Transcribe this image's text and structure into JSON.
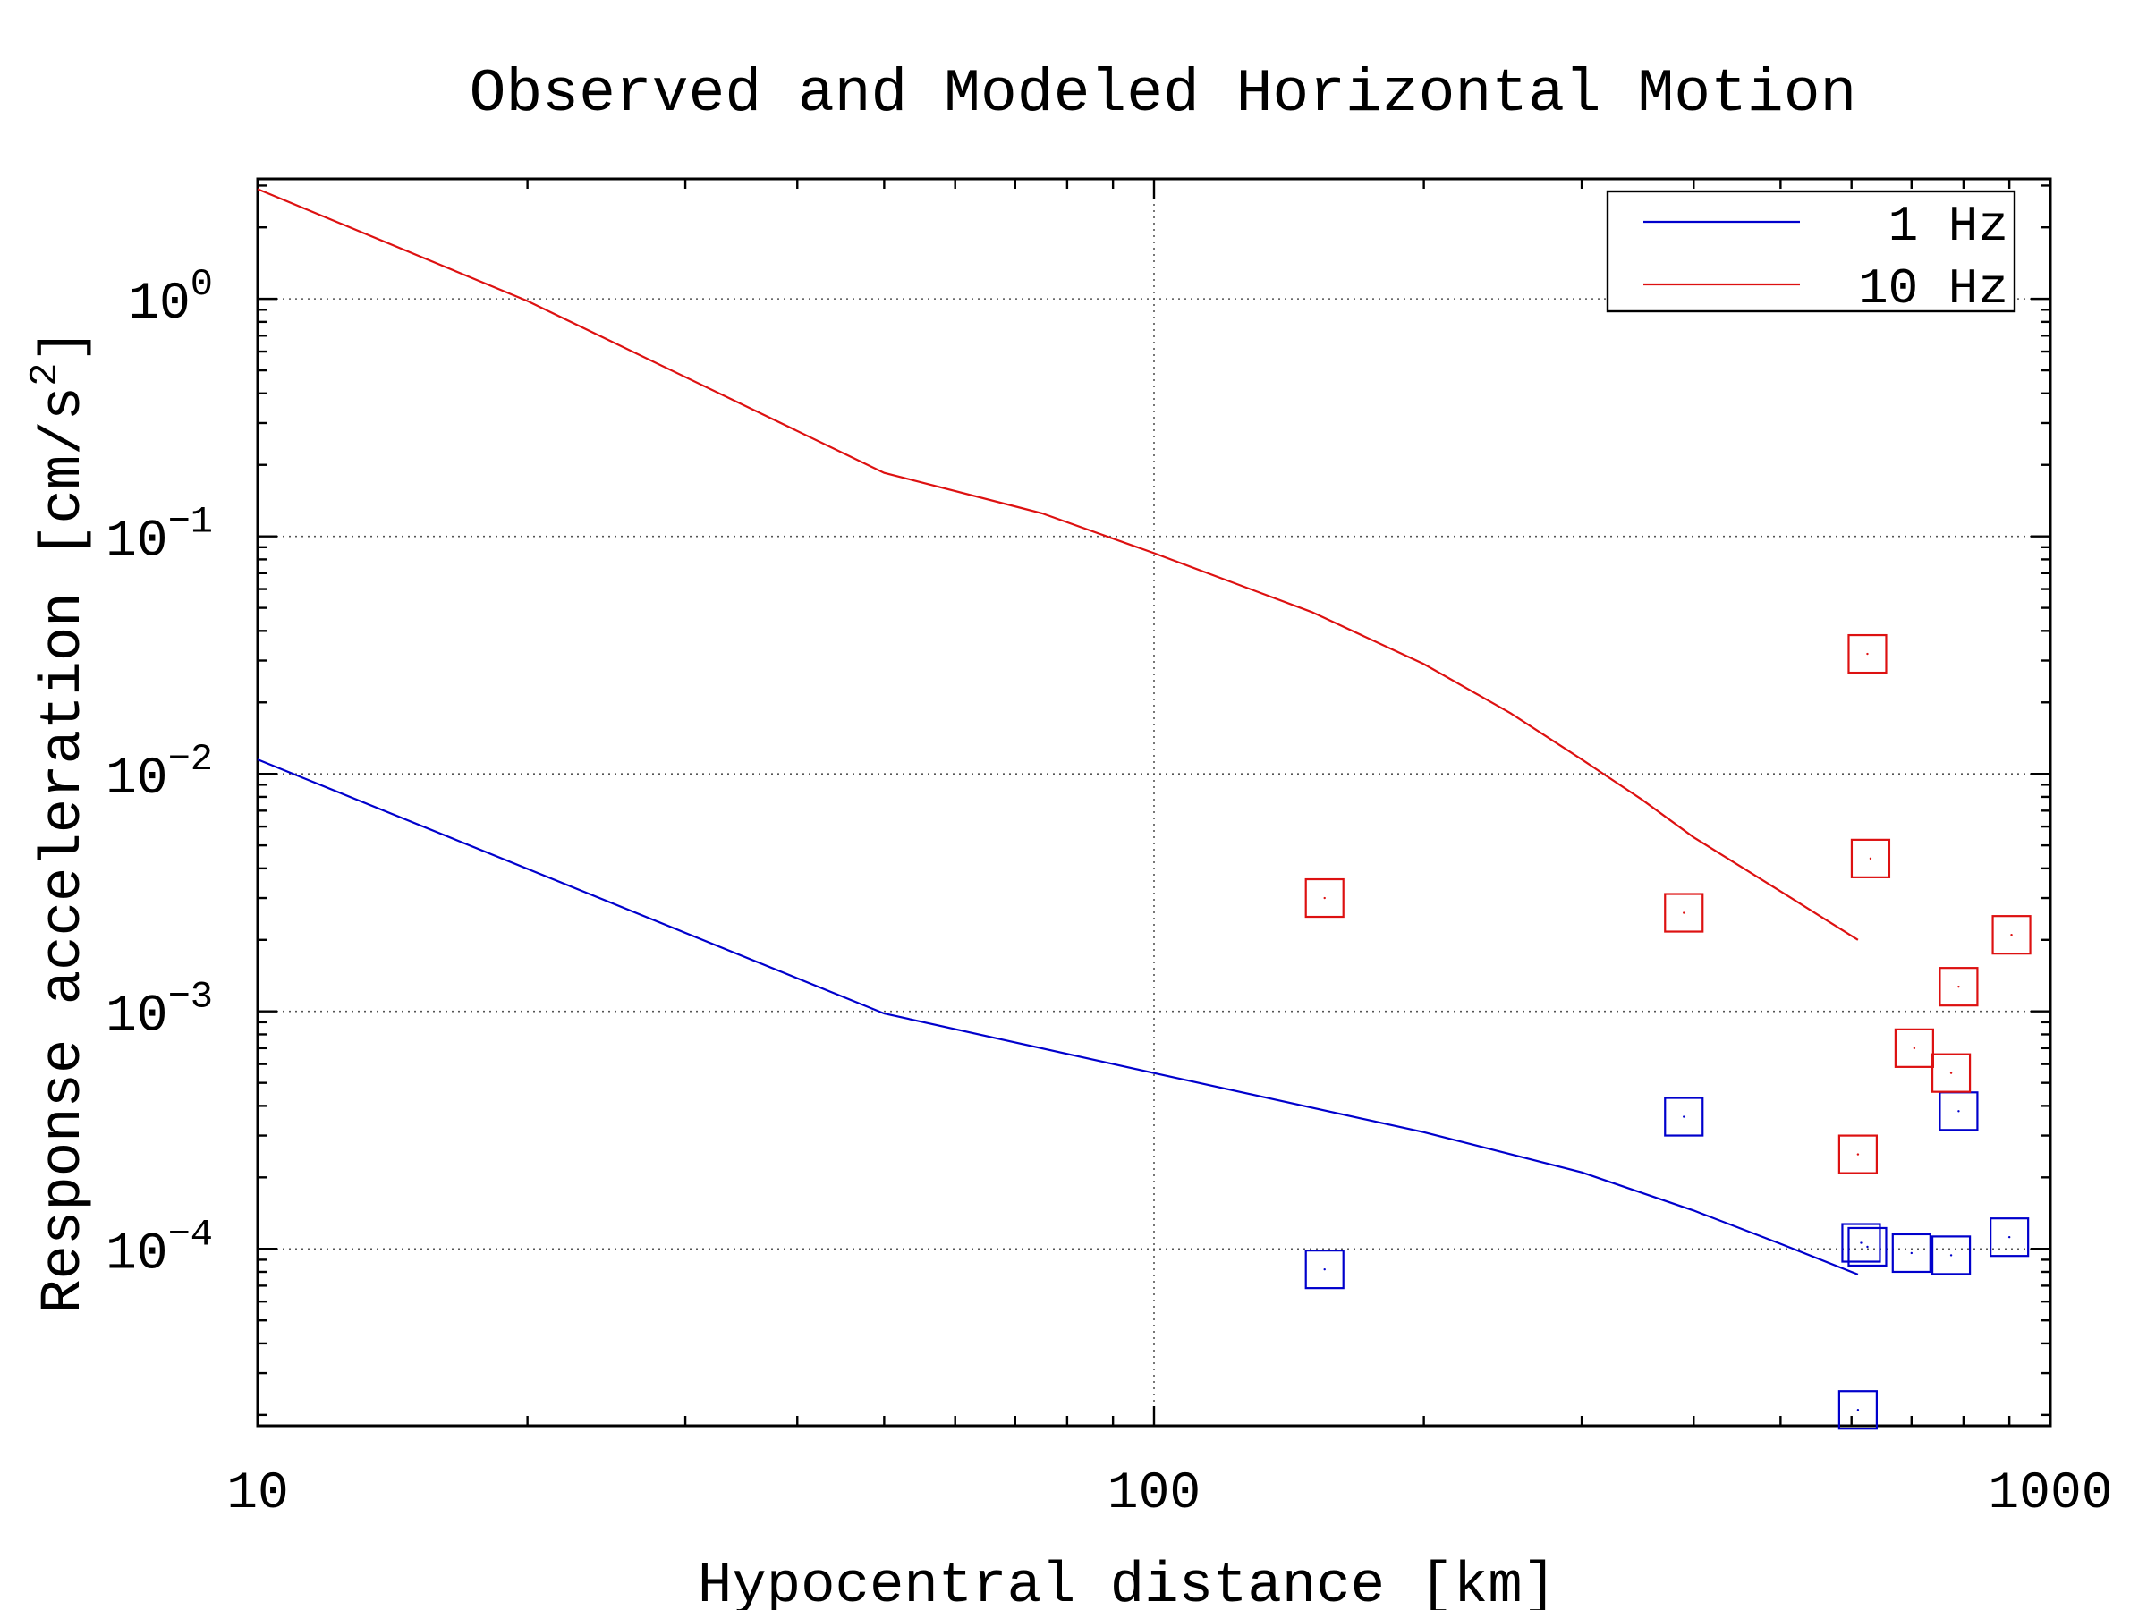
{
  "chart_data": {
    "type": "line",
    "title": "Observed and Modeled Horizontal Motion",
    "xlabel": "Hypocentral distance [km]",
    "ylabel_main": "Response acceleration [cm/s",
    "ylabel_sup": "2",
    "ylabel_close": "]",
    "x_scale": "log",
    "y_scale": "log",
    "xlim": [
      10,
      1000
    ],
    "ylim": [
      1.8e-05,
      3.2
    ],
    "x_ticks": [
      {
        "value": 10,
        "label": "10"
      },
      {
        "value": 100,
        "label": "100"
      },
      {
        "value": 1000,
        "label": "1000"
      }
    ],
    "y_ticks": [
      {
        "value": 1,
        "base": "10",
        "exp": "0"
      },
      {
        "value": 0.1,
        "base": "10",
        "exp": "−1"
      },
      {
        "value": 0.01,
        "base": "10",
        "exp": "−2"
      },
      {
        "value": 0.001,
        "base": "10",
        "exp": "−3"
      },
      {
        "value": 0.0001,
        "base": "10",
        "exp": "−4"
      }
    ],
    "grid": true,
    "legend_position": "top-right",
    "series": [
      {
        "name": "1 Hz",
        "color": "#0000cc",
        "line": [
          [
            10,
            0.0115
          ],
          [
            50,
            0.00098
          ],
          [
            100,
            0.00055
          ],
          [
            200,
            0.00031
          ],
          [
            300,
            0.00021
          ],
          [
            400,
            0.000145
          ],
          [
            500,
            0.000105
          ],
          [
            610,
            7.8e-05
          ]
        ],
        "observed": [
          [
            155,
            8.2e-05
          ],
          [
            390,
            0.00036
          ],
          [
            610,
            2.1e-05
          ],
          [
            615,
            0.000106
          ],
          [
            625,
            0.000102
          ],
          [
            700,
            9.6e-05
          ],
          [
            775,
            9.4e-05
          ],
          [
            790,
            0.00038
          ],
          [
            900,
            0.000112
          ]
        ]
      },
      {
        "name": "10 Hz",
        "color": "#dd1111",
        "line": [
          [
            10,
            2.9
          ],
          [
            20,
            0.98
          ],
          [
            50,
            0.185
          ],
          [
            75,
            0.125
          ],
          [
            100,
            0.085
          ],
          [
            150,
            0.048
          ],
          [
            200,
            0.029
          ],
          [
            250,
            0.018
          ],
          [
            300,
            0.0115
          ],
          [
            350,
            0.0078
          ],
          [
            400,
            0.0054
          ],
          [
            500,
            0.0032
          ],
          [
            610,
            0.002
          ]
        ],
        "observed": [
          [
            155,
            0.003
          ],
          [
            390,
            0.0026
          ],
          [
            610,
            0.00025
          ],
          [
            625,
            0.032
          ],
          [
            630,
            0.0044
          ],
          [
            705,
            0.0007
          ],
          [
            775,
            0.00055
          ],
          [
            790,
            0.00127
          ],
          [
            905,
            0.0021
          ]
        ]
      }
    ]
  }
}
